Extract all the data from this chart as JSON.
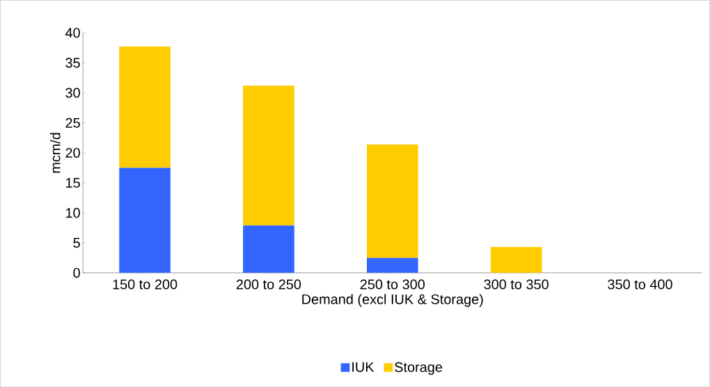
{
  "chart_data": {
    "type": "bar",
    "stacked": true,
    "xlabel": "Demand (excl IUK & Storage)",
    "ylabel": "mcm/d",
    "categories": [
      "150 to 200",
      "200 to 250",
      "250 to 300",
      "300 to 350",
      "350 to 400"
    ],
    "series": [
      {
        "name": "IUK",
        "color": "#3366ff",
        "values": [
          17.5,
          7.9,
          2.5,
          0,
          0
        ]
      },
      {
        "name": "Storage",
        "color": "#ffcc00",
        "values": [
          20.2,
          23.3,
          18.9,
          4.3,
          0
        ]
      }
    ],
    "ylim": [
      0,
      40
    ],
    "yticks": [
      0,
      5,
      10,
      15,
      20,
      25,
      30,
      35,
      40
    ],
    "grid": false,
    "legend": "bottom"
  }
}
